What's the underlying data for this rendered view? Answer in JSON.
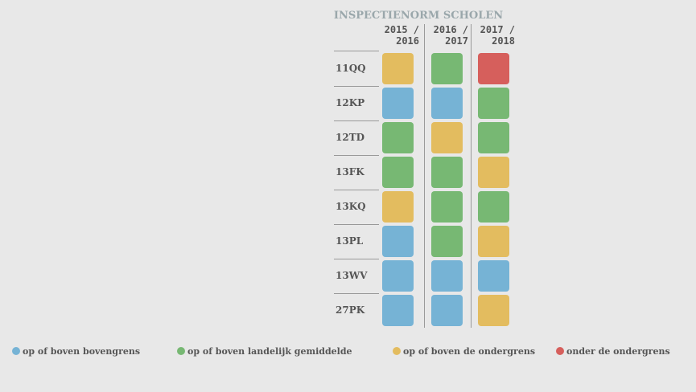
{
  "title": "INSPECTIENORM SCHOLEN",
  "columns": [
    "2015 / 2016",
    "2016 / 2017",
    "2017 / 2018"
  ],
  "legend": [
    {
      "name": "op of boven bovengrens",
      "color": "#76b3d5"
    },
    {
      "name": "op of boven landelijk gemiddelde",
      "color": "#77b873"
    },
    {
      "name": "op of boven de ondergrens",
      "color": "#e3bc5f"
    },
    {
      "name": "onder de ondergrens",
      "color": "#d65f5c"
    }
  ],
  "rows": [
    {
      "label": "11QQ",
      "cells": [
        2,
        1,
        3
      ]
    },
    {
      "label": "12KP",
      "cells": [
        0,
        0,
        1
      ]
    },
    {
      "label": "12TD",
      "cells": [
        1,
        2,
        1
      ]
    },
    {
      "label": "13FK",
      "cells": [
        1,
        1,
        2
      ]
    },
    {
      "label": "13KQ",
      "cells": [
        2,
        1,
        1
      ]
    },
    {
      "label": "13PL",
      "cells": [
        0,
        1,
        2
      ]
    },
    {
      "label": "13WV",
      "cells": [
        0,
        0,
        0
      ]
    },
    {
      "label": "27PK",
      "cells": [
        0,
        0,
        2
      ]
    }
  ]
}
